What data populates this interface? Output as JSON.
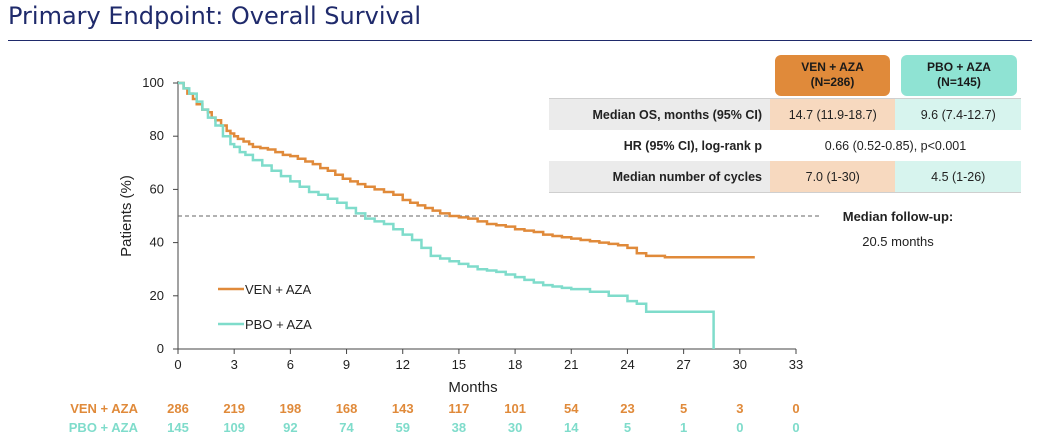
{
  "title": "Primary Endpoint: Overall Survival",
  "colors": {
    "ven": "#e08a3a",
    "pbo": "#7fdccb",
    "accent": "#1f2a6b"
  },
  "arms": {
    "ven": {
      "name": "VEN + AZA",
      "n": "(N=286)"
    },
    "pbo": {
      "name": "PBO + AZA",
      "n": "(N=145)"
    }
  },
  "stats_table": [
    {
      "label": "Median OS, months (95% CI)",
      "ven": "14.7 (11.9-18.7)",
      "pbo": "9.6 (7.4-12.7)"
    },
    {
      "label": "HR (95% CI), log-rank p",
      "combined": "0.66 (0.52-0.85), p<0.001"
    },
    {
      "label": "Median number of cycles",
      "ven": "7.0 (1-30)",
      "pbo": "4.5 (1-26)"
    }
  ],
  "follow_up": {
    "label": "Median follow-up:",
    "value": "20.5 months"
  },
  "legend": [
    "VEN + AZA",
    "PBO + AZA"
  ],
  "risk_table": {
    "times": [
      0,
      3,
      6,
      9,
      12,
      15,
      18,
      21,
      24,
      27,
      30,
      33
    ],
    "ven": {
      "label": "VEN + AZA",
      "counts": [
        286,
        219,
        198,
        168,
        143,
        117,
        101,
        54,
        23,
        5,
        3,
        0
      ]
    },
    "pbo": {
      "label": "PBO + AZA",
      "counts": [
        145,
        109,
        92,
        74,
        59,
        38,
        30,
        14,
        5,
        1,
        0,
        0
      ]
    }
  },
  "chart_data": {
    "type": "line",
    "title": "Primary Endpoint: Overall Survival",
    "xlabel": "Months",
    "ylabel": "Patients (%)",
    "xlim": [
      0,
      33
    ],
    "ylim": [
      0,
      100
    ],
    "xticks": [
      0,
      3,
      6,
      9,
      12,
      15,
      18,
      21,
      24,
      27,
      30,
      33
    ],
    "yticks": [
      0,
      20,
      40,
      60,
      80,
      100
    ],
    "reference_line": {
      "y": 50,
      "style": "dashed"
    },
    "series": [
      {
        "name": "VEN + AZA",
        "x": [
          0,
          0.3,
          0.5,
          0.8,
          1.0,
          1.3,
          1.6,
          1.8,
          2.0,
          2.3,
          2.6,
          2.8,
          3.0,
          3.2,
          3.5,
          3.8,
          4.0,
          4.4,
          4.8,
          5.2,
          5.6,
          6.0,
          6.4,
          6.8,
          7.2,
          7.6,
          8.0,
          8.4,
          8.8,
          9.2,
          9.6,
          10.0,
          10.5,
          11.0,
          11.5,
          12.0,
          12.4,
          12.8,
          13.2,
          13.6,
          14.0,
          14.5,
          15.0,
          15.5,
          16.0,
          16.5,
          17.0,
          17.5,
          18.0,
          18.5,
          19.0,
          19.5,
          20.0,
          20.5,
          21.0,
          21.5,
          22.0,
          22.5,
          23.0,
          23.5,
          24.0,
          24.5,
          25.0,
          26.0,
          27.0,
          28.0,
          29.0,
          30.0,
          30.8
        ],
        "y": [
          100,
          98,
          96,
          94,
          92,
          90,
          89,
          87,
          86,
          84,
          82,
          81,
          80,
          79,
          78,
          77,
          76,
          75.5,
          75,
          74,
          73,
          72.5,
          71.5,
          70.5,
          69.5,
          68,
          67,
          65.5,
          64,
          63,
          62,
          61,
          60,
          59,
          58,
          56,
          55,
          54,
          53,
          52,
          51,
          50,
          49.5,
          49,
          48,
          47,
          46.5,
          46,
          45,
          44.5,
          44,
          43,
          42.5,
          42,
          41.5,
          41,
          40.5,
          40,
          39.5,
          39,
          38,
          36,
          35,
          34.5,
          34.5,
          34.5,
          34.5,
          34.5,
          34.5
        ]
      },
      {
        "name": "PBO + AZA",
        "x": [
          0,
          0.3,
          0.6,
          1.0,
          1.3,
          1.6,
          2.0,
          2.4,
          2.8,
          3.0,
          3.3,
          3.6,
          4.0,
          4.5,
          5.0,
          5.5,
          6.0,
          6.5,
          7.0,
          7.5,
          8.0,
          8.5,
          9.0,
          9.5,
          10.0,
          10.5,
          11.0,
          11.5,
          12.0,
          12.5,
          13.0,
          13.5,
          14.0,
          14.5,
          15.0,
          15.5,
          16.0,
          16.5,
          17.0,
          17.5,
          18.0,
          18.5,
          19.0,
          19.5,
          20.0,
          20.5,
          21.0,
          22.0,
          23.0,
          24.0,
          24.5,
          25.0,
          26.0,
          27.0,
          28.0,
          28.6
        ],
        "y": [
          100,
          98,
          96,
          93,
          90,
          87,
          84,
          80,
          77,
          76,
          74,
          73,
          71,
          69,
          67,
          65,
          63,
          61,
          59,
          58,
          56.5,
          55,
          53,
          51,
          49,
          48,
          47,
          45,
          43,
          41,
          38,
          35,
          34,
          33,
          32,
          31,
          30,
          29.5,
          29,
          28,
          27,
          26,
          25,
          24,
          23.5,
          23,
          22.5,
          21.5,
          20,
          18,
          17,
          14,
          14,
          14,
          14,
          0
        ]
      }
    ]
  }
}
